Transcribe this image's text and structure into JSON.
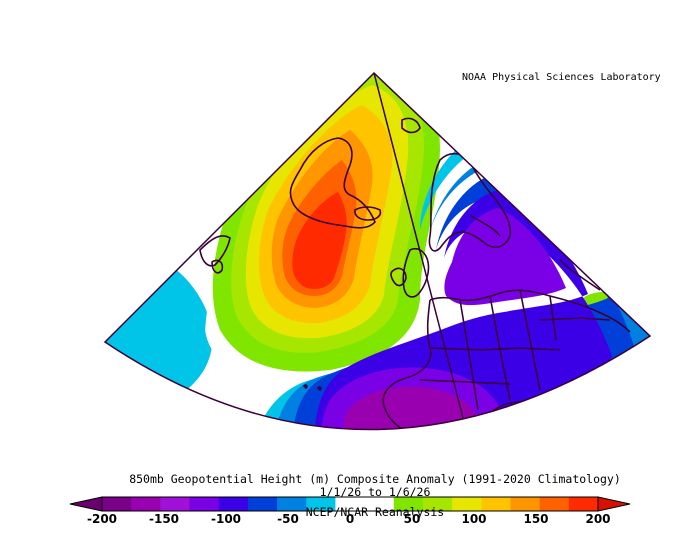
{
  "credit": "NOAA Physical Sciences Laboratory",
  "title_line1": "850mb Geopotential Height (m) Composite Anomaly (1991-2020 Climatology)",
  "title_line2": "1/1/26  to 1/6/26",
  "title_line3": "NCEP/NCAR Reanalysis",
  "colorbar": {
    "colors": [
      "#7a0087",
      "#9900b0",
      "#a010d8",
      "#7a00e6",
      "#3c00e6",
      "#0040d8",
      "#0080e0",
      "#00c4e8",
      "#ffffff",
      "#ffffff",
      "#80e600",
      "#a6e600",
      "#e6e600",
      "#ffc400",
      "#ff9600",
      "#ff6000",
      "#ff2a00"
    ],
    "left_arrow_color": "#6a0070",
    "right_arrow_color": "#d81000",
    "ticks": [
      "-200",
      "-150",
      "-100",
      "-50",
      "0",
      "50",
      "100",
      "150",
      "200"
    ]
  },
  "map": {
    "region": "North Atlantic and Europe",
    "features": [
      {
        "name": "positive-anomaly-greenland",
        "level": "+175 m",
        "color": "#ff2a00"
      },
      {
        "name": "negative-anomaly-scandinavia",
        "level": "-125 m",
        "color": "#7a00e6"
      },
      {
        "name": "negative-anomaly-iberia",
        "level": "-150 m",
        "color": "#9900b0"
      }
    ]
  }
}
